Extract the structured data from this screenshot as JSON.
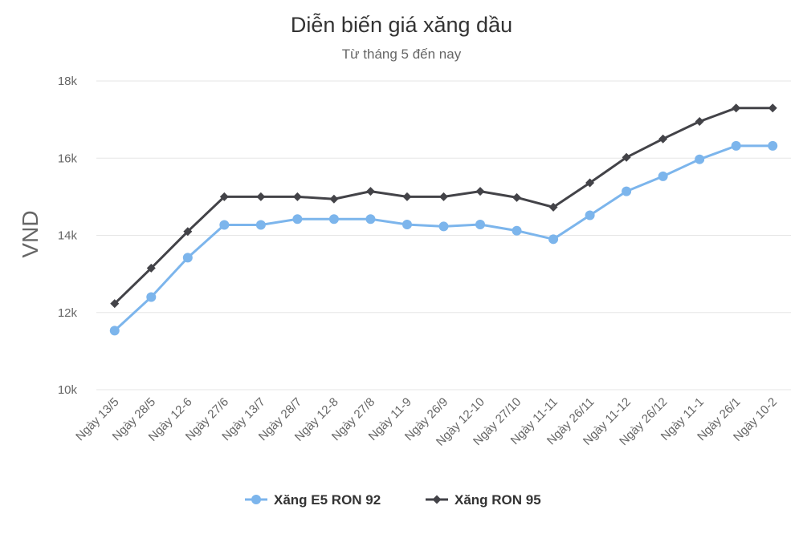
{
  "chart_data": {
    "type": "line",
    "title": "Diễn biến giá xăng dầu",
    "subtitle": "Từ tháng 5 đến nay",
    "ylabel": "VND",
    "xlabel": "",
    "ylim": [
      10000,
      18000
    ],
    "yticks": [
      10000,
      12000,
      14000,
      16000,
      18000
    ],
    "ytick_labels": [
      "10k",
      "12k",
      "14k",
      "16k",
      "18k"
    ],
    "grid": true,
    "legend_position": "bottom",
    "categories": [
      "Ngày 13/5",
      "Ngày 28/5",
      "Ngày 12-6",
      "Ngày 27/6",
      "Ngày 13/7",
      "Ngày 28/7",
      "Ngày 12-8",
      "Ngày 27/8",
      "Ngày 11-9",
      "Ngày 26/9",
      "Ngày 12-10",
      "Ngày 27/10",
      "Ngày 11-11",
      "Ngày 26/11",
      "Ngày 11-12",
      "Ngày 26/12",
      "Ngày 11-1",
      "Ngày 26/1",
      "Ngày 10-2"
    ],
    "series": [
      {
        "name": "Xăng E5 RON 92",
        "color": "#7cb5ec",
        "marker": "circle",
        "values": [
          11530,
          12400,
          13420,
          14270,
          14270,
          14420,
          14420,
          14420,
          14280,
          14230,
          14280,
          14120,
          13900,
          14520,
          15140,
          15530,
          15970,
          16320,
          16320
        ]
      },
      {
        "name": "Xăng RON 95",
        "color": "#434348",
        "marker": "diamond",
        "values": [
          12230,
          13150,
          14100,
          15000,
          15000,
          15000,
          14940,
          15140,
          15000,
          15000,
          15140,
          14980,
          14730,
          15360,
          16020,
          16500,
          16950,
          17300,
          17300
        ]
      }
    ]
  }
}
